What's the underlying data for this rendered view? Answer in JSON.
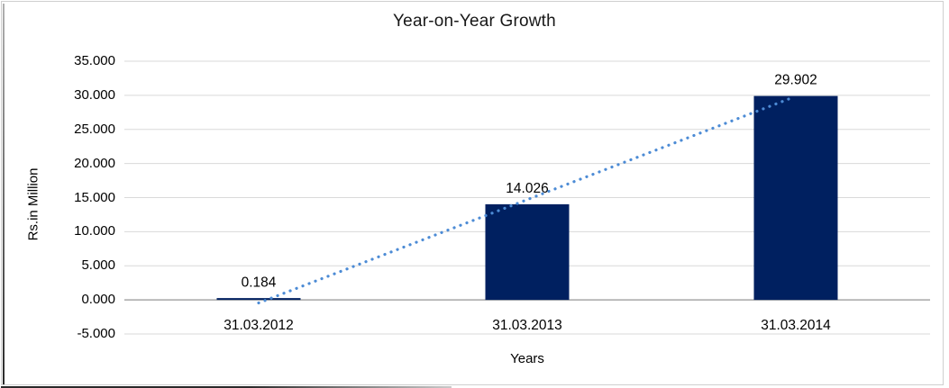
{
  "chart_data": {
    "type": "bar",
    "title": "Year-on-Year Growth",
    "xlabel": "Years",
    "ylabel": "Rs.in Million",
    "categories": [
      "31.03.2012",
      "31.03.2013",
      "31.03.2014"
    ],
    "values": [
      0.184,
      14.026,
      29.902
    ],
    "data_labels": [
      "0.184",
      "14.026",
      "29.902"
    ],
    "ylim": [
      -5,
      35
    ],
    "ytick_step": 5,
    "ytick_labels": [
      "35.000",
      "30.000",
      "25.000",
      "20.000",
      "15.000",
      "10.000",
      "5.000",
      "0.000",
      "-5.000"
    ],
    "grid": true,
    "legend": "none",
    "bar_color": "#002060",
    "trendline": {
      "style": "dotted",
      "color": "#4C8BD5",
      "from_value": -0.45,
      "to_value": 29.6
    },
    "gridline_color": "#d9d9d9",
    "axis_line_color": "#a6a6a6",
    "label_color": "#000000"
  }
}
